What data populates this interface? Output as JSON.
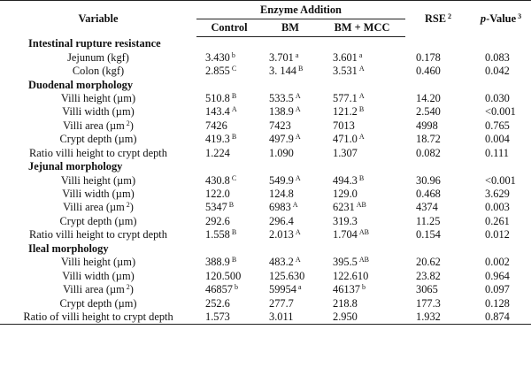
{
  "header": {
    "variable": "Variable",
    "enzyme_addition": "Enzyme Addition",
    "control": "Control",
    "bm": "BM",
    "bm_mcc": "BM + MCC",
    "rse": "RSE",
    "rse_sup": "2",
    "p_value_p": "p",
    "p_value_rest": "-Value",
    "p_value_sup": "3"
  },
  "sections": [
    {
      "title": "Intestinal rupture resistance",
      "rows": [
        {
          "label": "Jejunum (kgf)",
          "control": "3.430",
          "control_sup": "b",
          "bm": "3.701",
          "bm_sup": "a",
          "bm_mcc": "3.601",
          "bm_mcc_sup": "a",
          "rse": "0.178",
          "p": "0.083"
        },
        {
          "label": "Colon (kgf)",
          "control": "2.855",
          "control_sup": "C",
          "bm": "3. 144",
          "bm_sup": "B",
          "bm_mcc": "3.531",
          "bm_mcc_sup": "A",
          "rse": "0.460",
          "p": "0.042"
        }
      ]
    },
    {
      "title": "Duodenal morphology",
      "rows": [
        {
          "label": "Villi height (µm)",
          "control": "510.8",
          "control_sup": "B",
          "bm": "533.5",
          "bm_sup": "A",
          "bm_mcc": "577.1",
          "bm_mcc_sup": "A",
          "rse": "14.20",
          "p": "0.030"
        },
        {
          "label": "Villi width (µm)",
          "control": "143.4",
          "control_sup": "A",
          "bm": "138.9",
          "bm_sup": "A",
          "bm_mcc": "121.2",
          "bm_mcc_sup": "B",
          "rse": "2.540",
          "p": "<0.001"
        },
        {
          "label": "Villi area (µm",
          "label_sup": "2",
          "label_end": ")",
          "control": "7426",
          "control_sup": "",
          "bm": "7423",
          "bm_sup": "",
          "bm_mcc": "7013",
          "bm_mcc_sup": "",
          "rse": "4998",
          "p": "0.765"
        },
        {
          "label": "Crypt depth (µm)",
          "control": "419.3",
          "control_sup": "B",
          "bm": "497.9",
          "bm_sup": "A",
          "bm_mcc": "471.0",
          "bm_mcc_sup": "A",
          "rse": "18.72",
          "p": "0.004"
        },
        {
          "label": "Ratio villi height to crypt depth",
          "control": "1.224",
          "control_sup": "",
          "bm": "1.090",
          "bm_sup": "",
          "bm_mcc": "1.307",
          "bm_mcc_sup": "",
          "rse": "0.082",
          "p": "0.111"
        }
      ]
    },
    {
      "title": "Jejunal morphology",
      "rows": [
        {
          "label": "Villi height (µm)",
          "control": "430.8",
          "control_sup": "C",
          "bm": "549.9",
          "bm_sup": "A",
          "bm_mcc": "494.3",
          "bm_mcc_sup": "B",
          "rse": "30.96",
          "p": "<0.001"
        },
        {
          "label": "Villi width (µm)",
          "control": "122.0",
          "control_sup": "",
          "bm": "124.8",
          "bm_sup": "",
          "bm_mcc": "129.0",
          "bm_mcc_sup": "",
          "rse": "0.468",
          "p": "3.629"
        },
        {
          "label": "Villi area (µm",
          "label_sup": "2",
          "label_end": ")",
          "control": "5347",
          "control_sup": "B",
          "bm": "6983",
          "bm_sup": "A",
          "bm_mcc": "6231",
          "bm_mcc_sup": "AB",
          "rse": "4374",
          "p": "0.003"
        },
        {
          "label": "Crypt depth (µm)",
          "control": "292.6",
          "control_sup": "",
          "bm": "296.4",
          "bm_sup": "",
          "bm_mcc": "319.3",
          "bm_mcc_sup": "",
          "rse": "11.25",
          "p": "0.261"
        },
        {
          "label": "Ratio villi height to crypt depth",
          "control": "1.558",
          "control_sup": "B",
          "bm": "2.013",
          "bm_sup": "A",
          "bm_mcc": "1.704",
          "bm_mcc_sup": "AB",
          "rse": "0.154",
          "p": "0.012"
        }
      ]
    },
    {
      "title": "Ileal morphology",
      "rows": [
        {
          "label": "Villi height (µm)",
          "control": "388.9",
          "control_sup": "B",
          "bm": "483.2",
          "bm_sup": "A",
          "bm_mcc": "395.5",
          "bm_mcc_sup": "AB",
          "rse": "20.62",
          "p": "0.002"
        },
        {
          "label": "Villi width (µm)",
          "control": "120.500",
          "control_sup": "",
          "bm": "125.630",
          "bm_sup": "",
          "bm_mcc": "122.610",
          "bm_mcc_sup": "",
          "rse": "23.82",
          "p": "0.964"
        },
        {
          "label": "Villi area (µm",
          "label_sup": "2",
          "label_end": ")",
          "control": "46857",
          "control_sup": "b",
          "bm": "59954",
          "bm_sup": "a",
          "bm_mcc": "46137",
          "bm_mcc_sup": "b",
          "rse": "3065",
          "p": "0.097"
        },
        {
          "label": "Crypt depth (µm)",
          "control": "252.6",
          "control_sup": "",
          "bm": "277.7",
          "bm_sup": "",
          "bm_mcc": "218.8",
          "bm_mcc_sup": "",
          "rse": "177.3",
          "p": "0.128"
        },
        {
          "label": "Ratio of villi height to crypt depth",
          "control": "1.573",
          "control_sup": "",
          "bm": "3.011",
          "bm_sup": "",
          "bm_mcc": "2.950",
          "bm_mcc_sup": "",
          "rse": "1.932",
          "p": "0.874"
        }
      ]
    }
  ]
}
